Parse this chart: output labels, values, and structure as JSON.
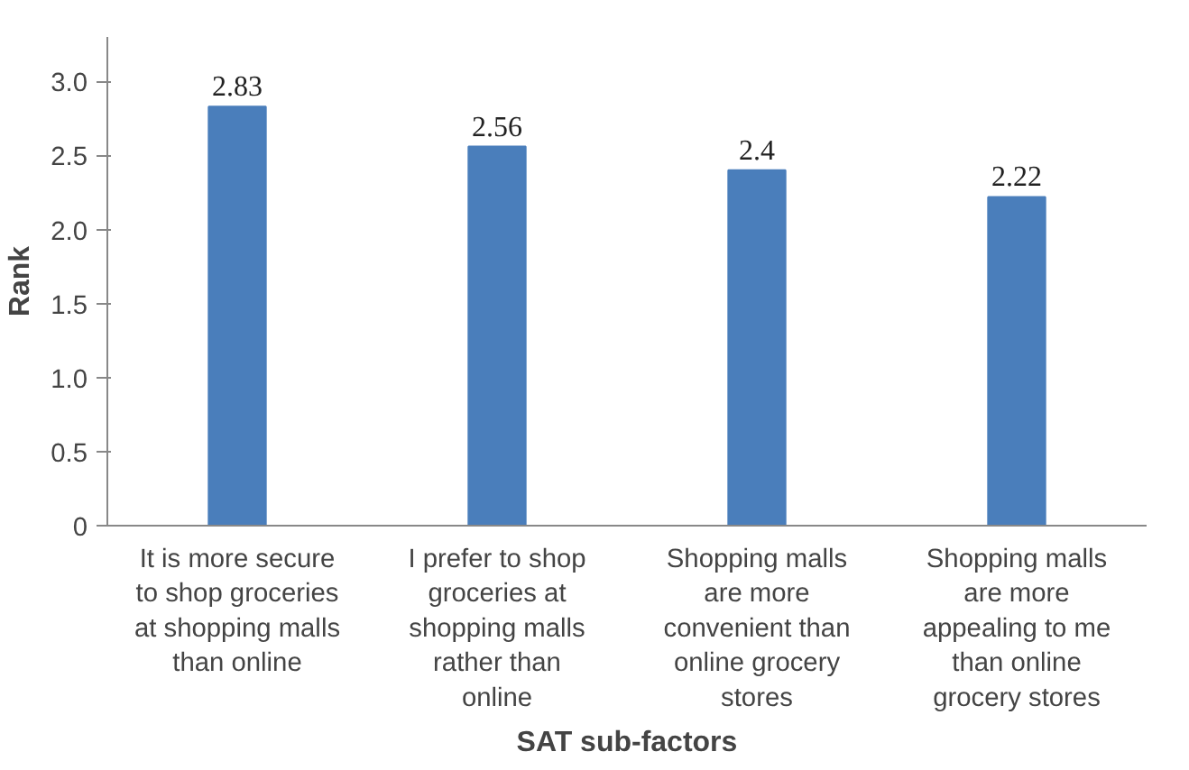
{
  "chart_data": {
    "type": "bar",
    "xlabel": "SAT sub-factors",
    "ylabel": "Rank",
    "categories": [
      "It is more secure to shop groceries at shopping malls than online",
      "I prefer to shop groceries at shopping malls rather than online",
      "Shopping malls are more convenient than online grocery stores",
      "Shopping malls are more appealing to me than online grocery stores"
    ],
    "values": [
      2.83,
      2.56,
      2.4,
      2.22
    ],
    "color": "#4a7ebb",
    "ylim": [
      0,
      3.3
    ],
    "yticks": [
      0,
      0.5,
      {
        "value": 1,
        "label": "1.0"
      },
      1.5,
      {
        "value": 2,
        "label": "2.0"
      },
      2.5,
      {
        "value": 3,
        "label": "3.0"
      }
    ],
    "grid": false,
    "data_labels": true
  }
}
